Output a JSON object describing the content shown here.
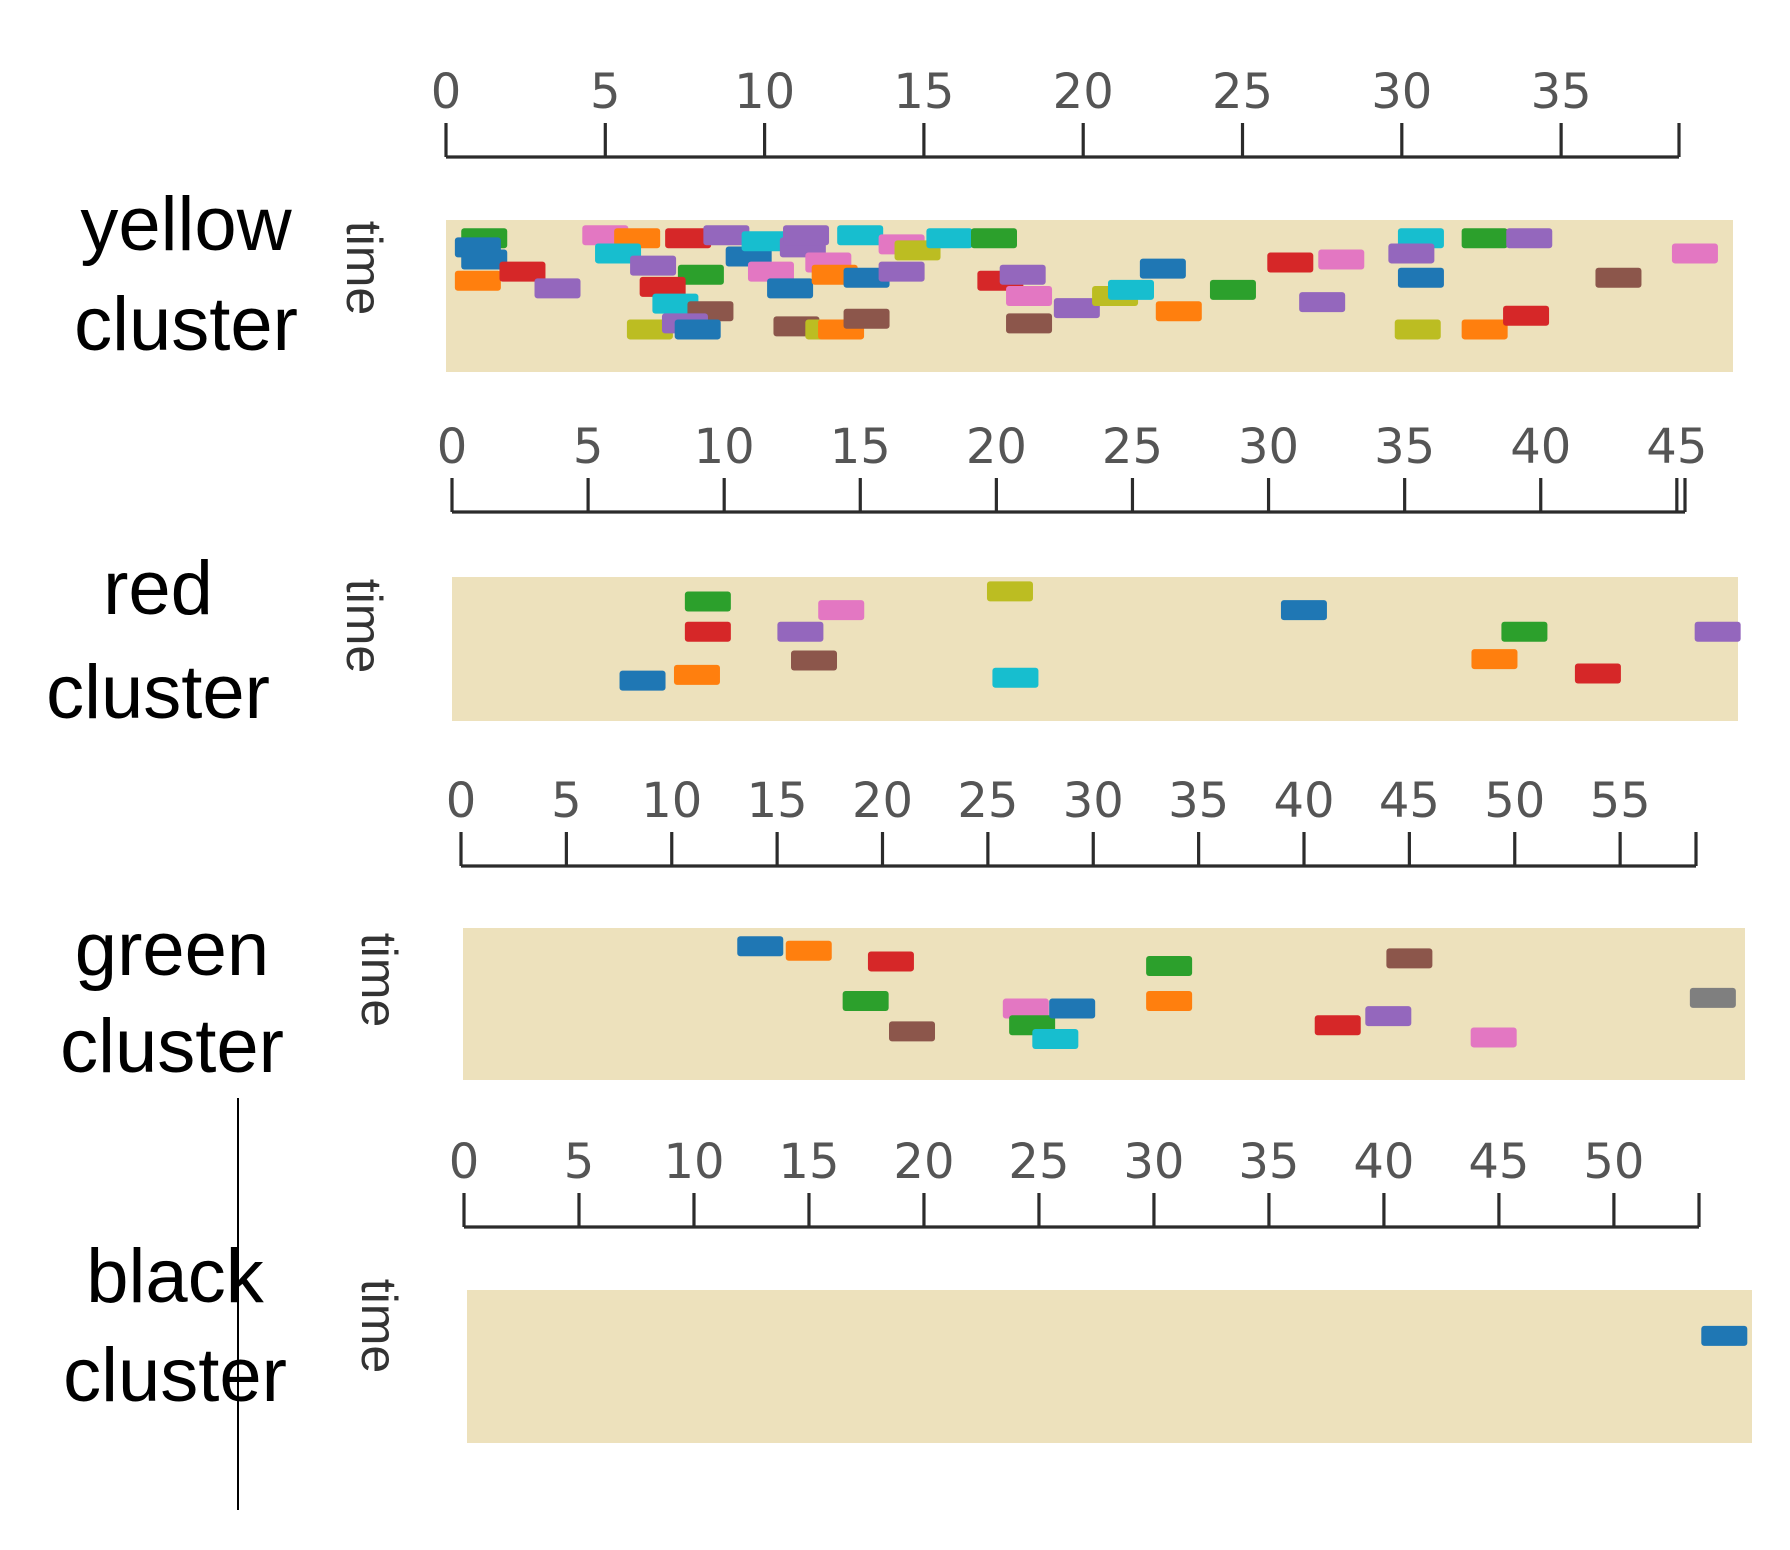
{
  "chart_data": [
    {
      "type": "timeline",
      "cluster_label": [
        "yellow",
        "cluster"
      ],
      "ylabel": "time",
      "ticks": [
        0,
        5,
        10,
        15,
        20,
        25,
        30,
        35
      ],
      "xlim": [
        0,
        38.7
      ],
      "band_color": "#ede1bc",
      "events": [
        {
          "x": 1.2,
          "t": 0.12,
          "color": "#2ca02c"
        },
        {
          "x": 1.0,
          "t": 0.18,
          "color": "#1f77b4"
        },
        {
          "x": 1.2,
          "t": 0.26,
          "color": "#1f77b4"
        },
        {
          "x": 1.0,
          "t": 0.4,
          "color": "#ff7f0e"
        },
        {
          "x": 2.4,
          "t": 0.34,
          "color": "#d62728"
        },
        {
          "x": 3.5,
          "t": 0.45,
          "color": "#9467bd"
        },
        {
          "x": 5.0,
          "t": 0.1,
          "color": "#e377c2"
        },
        {
          "x": 6.0,
          "t": 0.12,
          "color": "#ff7f0e"
        },
        {
          "x": 5.4,
          "t": 0.22,
          "color": "#17becf"
        },
        {
          "x": 6.5,
          "t": 0.3,
          "color": "#9467bd"
        },
        {
          "x": 7.6,
          "t": 0.12,
          "color": "#d62728"
        },
        {
          "x": 8.8,
          "t": 0.1,
          "color": "#9467bd"
        },
        {
          "x": 8.0,
          "t": 0.36,
          "color": "#2ca02c"
        },
        {
          "x": 6.8,
          "t": 0.44,
          "color": "#d62728"
        },
        {
          "x": 7.2,
          "t": 0.55,
          "color": "#17becf"
        },
        {
          "x": 8.3,
          "t": 0.6,
          "color": "#8c564b"
        },
        {
          "x": 9.5,
          "t": 0.24,
          "color": "#1f77b4"
        },
        {
          "x": 10.0,
          "t": 0.14,
          "color": "#17becf"
        },
        {
          "x": 10.2,
          "t": 0.34,
          "color": "#e377c2"
        },
        {
          "x": 11.2,
          "t": 0.18,
          "color": "#9467bd"
        },
        {
          "x": 10.8,
          "t": 0.45,
          "color": "#1f77b4"
        },
        {
          "x": 12.0,
          "t": 0.28,
          "color": "#e377c2"
        },
        {
          "x": 11.3,
          "t": 0.1,
          "color": "#9467bd"
        },
        {
          "x": 12.2,
          "t": 0.36,
          "color": "#ff7f0e"
        },
        {
          "x": 13.0,
          "t": 0.1,
          "color": "#17becf"
        },
        {
          "x": 13.2,
          "t": 0.38,
          "color": "#1f77b4"
        },
        {
          "x": 14.3,
          "t": 0.16,
          "color": "#e377c2"
        },
        {
          "x": 14.3,
          "t": 0.34,
          "color": "#9467bd"
        },
        {
          "x": 6.4,
          "t": 0.72,
          "color": "#bcbd22"
        },
        {
          "x": 7.5,
          "t": 0.68,
          "color": "#9467bd"
        },
        {
          "x": 7.9,
          "t": 0.72,
          "color": "#1f77b4"
        },
        {
          "x": 11.0,
          "t": 0.7,
          "color": "#8c564b"
        },
        {
          "x": 12.0,
          "t": 0.72,
          "color": "#bcbd22"
        },
        {
          "x": 12.4,
          "t": 0.72,
          "color": "#ff7f0e"
        },
        {
          "x": 13.2,
          "t": 0.65,
          "color": "#8c564b"
        },
        {
          "x": 14.8,
          "t": 0.2,
          "color": "#bcbd22"
        },
        {
          "x": 15.8,
          "t": 0.12,
          "color": "#17becf"
        },
        {
          "x": 17.2,
          "t": 0.12,
          "color": "#2ca02c"
        },
        {
          "x": 17.4,
          "t": 0.4,
          "color": "#d62728"
        },
        {
          "x": 18.1,
          "t": 0.36,
          "color": "#9467bd"
        },
        {
          "x": 18.3,
          "t": 0.5,
          "color": "#e377c2"
        },
        {
          "x": 18.3,
          "t": 0.68,
          "color": "#8c564b"
        },
        {
          "x": 19.8,
          "t": 0.58,
          "color": "#9467bd"
        },
        {
          "x": 21.0,
          "t": 0.5,
          "color": "#bcbd22"
        },
        {
          "x": 21.5,
          "t": 0.46,
          "color": "#17becf"
        },
        {
          "x": 22.5,
          "t": 0.32,
          "color": "#1f77b4"
        },
        {
          "x": 23.0,
          "t": 0.6,
          "color": "#ff7f0e"
        },
        {
          "x": 24.7,
          "t": 0.46,
          "color": "#2ca02c"
        },
        {
          "x": 26.5,
          "t": 0.28,
          "color": "#d62728"
        },
        {
          "x": 28.1,
          "t": 0.26,
          "color": "#e377c2"
        },
        {
          "x": 27.5,
          "t": 0.54,
          "color": "#9467bd"
        },
        {
          "x": 30.6,
          "t": 0.12,
          "color": "#17becf"
        },
        {
          "x": 30.3,
          "t": 0.22,
          "color": "#9467bd"
        },
        {
          "x": 30.6,
          "t": 0.38,
          "color": "#1f77b4"
        },
        {
          "x": 30.5,
          "t": 0.72,
          "color": "#bcbd22"
        },
        {
          "x": 32.6,
          "t": 0.12,
          "color": "#2ca02c"
        },
        {
          "x": 34.0,
          "t": 0.12,
          "color": "#9467bd"
        },
        {
          "x": 32.6,
          "t": 0.72,
          "color": "#ff7f0e"
        },
        {
          "x": 33.9,
          "t": 0.63,
          "color": "#d62728"
        },
        {
          "x": 36.8,
          "t": 0.38,
          "color": "#8c564b"
        },
        {
          "x": 39.2,
          "t": 0.22,
          "color": "#e377c2"
        }
      ]
    },
    {
      "type": "timeline",
      "cluster_label": [
        "red",
        "cluster"
      ],
      "ylabel": "time",
      "ticks": [
        0,
        5,
        10,
        15,
        20,
        25,
        30,
        35,
        40,
        45
      ],
      "xlim": [
        0,
        45.3
      ],
      "band_color": "#ede1bc",
      "events": [
        {
          "x": 9.4,
          "t": 0.17,
          "color": "#2ca02c"
        },
        {
          "x": 9.4,
          "t": 0.38,
          "color": "#d62728"
        },
        {
          "x": 9.0,
          "t": 0.68,
          "color": "#ff7f0e"
        },
        {
          "x": 7.0,
          "t": 0.72,
          "color": "#1f77b4"
        },
        {
          "x": 12.8,
          "t": 0.38,
          "color": "#9467bd"
        },
        {
          "x": 14.3,
          "t": 0.23,
          "color": "#e377c2"
        },
        {
          "x": 13.3,
          "t": 0.58,
          "color": "#8c564b"
        },
        {
          "x": 20.5,
          "t": 0.1,
          "color": "#bcbd22"
        },
        {
          "x": 20.7,
          "t": 0.7,
          "color": "#17becf"
        },
        {
          "x": 31.3,
          "t": 0.23,
          "color": "#1f77b4"
        },
        {
          "x": 39.4,
          "t": 0.38,
          "color": "#2ca02c"
        },
        {
          "x": 38.3,
          "t": 0.57,
          "color": "#ff7f0e"
        },
        {
          "x": 42.1,
          "t": 0.67,
          "color": "#d62728"
        },
        {
          "x": 46.5,
          "t": 0.38,
          "color": "#9467bd"
        }
      ]
    },
    {
      "type": "timeline",
      "cluster_label": [
        "green",
        "cluster"
      ],
      "ylabel": "time",
      "ticks": [
        0,
        5,
        10,
        15,
        20,
        25,
        30,
        35,
        40,
        45,
        50,
        55
      ],
      "xlim": [
        0,
        58.6
      ],
      "band_color": "#ede1bc",
      "events": [
        {
          "x": 14.2,
          "t": 0.12,
          "color": "#1f77b4"
        },
        {
          "x": 16.5,
          "t": 0.15,
          "color": "#ff7f0e"
        },
        {
          "x": 20.4,
          "t": 0.22,
          "color": "#d62728"
        },
        {
          "x": 19.2,
          "t": 0.48,
          "color": "#2ca02c"
        },
        {
          "x": 21.4,
          "t": 0.68,
          "color": "#8c564b"
        },
        {
          "x": 26.8,
          "t": 0.53,
          "color": "#e377c2"
        },
        {
          "x": 27.1,
          "t": 0.64,
          "color": "#2ca02c"
        },
        {
          "x": 28.2,
          "t": 0.73,
          "color": "#17becf"
        },
        {
          "x": 29.0,
          "t": 0.53,
          "color": "#1f77b4"
        },
        {
          "x": 33.6,
          "t": 0.25,
          "color": "#2ca02c"
        },
        {
          "x": 33.6,
          "t": 0.48,
          "color": "#ff7f0e"
        },
        {
          "x": 41.6,
          "t": 0.64,
          "color": "#d62728"
        },
        {
          "x": 44.0,
          "t": 0.58,
          "color": "#9467bd"
        },
        {
          "x": 45.0,
          "t": 0.2,
          "color": "#8c564b"
        },
        {
          "x": 49.0,
          "t": 0.72,
          "color": "#e377c2"
        },
        {
          "x": 59.4,
          "t": 0.46,
          "color": "#7f7f7f"
        }
      ]
    },
    {
      "type": "timeline",
      "cluster_label": [
        "black",
        "cluster"
      ],
      "ylabel": "time",
      "ticks": [
        0,
        5,
        10,
        15,
        20,
        25,
        30,
        35,
        40,
        45,
        50
      ],
      "xlim": [
        0,
        53.7
      ],
      "band_color": "#ede1bc",
      "events": [
        {
          "x": 54.8,
          "t": 0.3,
          "color": "#1f77b4"
        }
      ]
    }
  ]
}
